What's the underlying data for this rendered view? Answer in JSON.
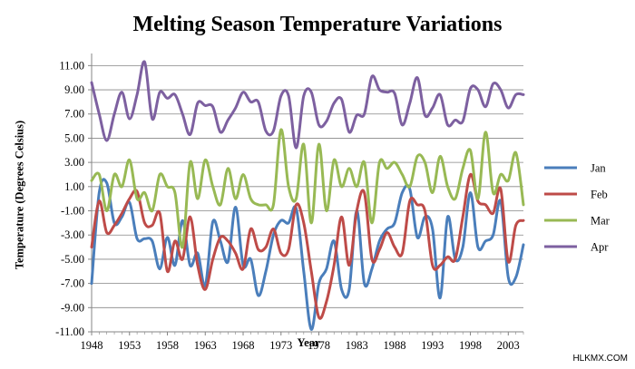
{
  "watermark": "HLKMX.COM",
  "chart_data": {
    "type": "line",
    "title": "Melting Season Temperature Variations",
    "xlabel": "Year",
    "ylabel": "Temperature (Degrees Celsius)",
    "xlim": [
      1948,
      2005
    ],
    "ylim": [
      -11,
      12
    ],
    "x_ticks": [
      1948,
      1953,
      1958,
      1963,
      1968,
      1973,
      1978,
      1983,
      1988,
      1993,
      1998,
      2003
    ],
    "y_ticks": [
      11,
      9,
      7,
      5,
      3,
      1,
      -1,
      -3,
      -5,
      -7,
      -9,
      -11
    ],
    "y_tick_labels": [
      "11.00",
      "9.00",
      "7.00",
      "5.00",
      "3.00",
      "1.00",
      "-1.00",
      "-3.00",
      "-5.00",
      "-7.00",
      "-9.00",
      "-11.00"
    ],
    "grid": "horizontal",
    "legend_position": "right",
    "x": [
      1948,
      1949,
      1950,
      1951,
      1952,
      1953,
      1954,
      1955,
      1956,
      1957,
      1958,
      1959,
      1960,
      1961,
      1962,
      1963,
      1964,
      1965,
      1966,
      1967,
      1968,
      1969,
      1970,
      1971,
      1972,
      1973,
      1974,
      1975,
      1976,
      1977,
      1978,
      1979,
      1980,
      1981,
      1982,
      1983,
      1984,
      1985,
      1986,
      1987,
      1988,
      1989,
      1990,
      1991,
      1992,
      1993,
      1994,
      1995,
      1996,
      1997,
      1998,
      1999,
      2000,
      2001,
      2002,
      2003,
      2004,
      2005
    ],
    "series": [
      {
        "name": "Jan",
        "color": "#4a7ebb",
        "values": [
          -7.0,
          0.5,
          1.3,
          -2.0,
          -1.5,
          -0.3,
          -3.3,
          -3.3,
          -3.5,
          -5.8,
          -3.2,
          -5.5,
          -1.8,
          -5.5,
          -4.5,
          -7.2,
          -1.9,
          -3.5,
          -5.2,
          -0.7,
          -5.5,
          -5.0,
          -8.0,
          -6.0,
          -3.0,
          -1.8,
          -2.0,
          -0.8,
          -6.0,
          -10.8,
          -7.0,
          -5.8,
          -3.5,
          -7.5,
          -7.5,
          -1.0,
          -7.0,
          -5.8,
          -3.5,
          -2.5,
          -2.0,
          0.5,
          0.8,
          -3.2,
          -1.5,
          -2.5,
          -8.2,
          -1.5,
          -5.0,
          -4.0,
          0.5,
          -4.0,
          -3.5,
          -3.0,
          -0.2,
          -6.5,
          -6.5,
          -3.8
        ]
      },
      {
        "name": "Feb",
        "color": "#be4b48",
        "values": [
          -4.0,
          -0.2,
          -2.8,
          -2.2,
          -1.2,
          0.0,
          0.6,
          -2.0,
          -2.2,
          -1.2,
          -6.0,
          -3.5,
          -5.0,
          -1.5,
          -5.5,
          -7.5,
          -5.0,
          -3.2,
          -3.5,
          -4.5,
          -5.8,
          -2.5,
          -4.2,
          -4.0,
          -2.5,
          -4.5,
          -4.2,
          -0.5,
          -2.0,
          -6.0,
          -9.8,
          -8.5,
          -5.5,
          -1.5,
          -5.5,
          -1.0,
          0.5,
          -5.0,
          -4.2,
          -2.8,
          -4.0,
          -4.5,
          -0.2,
          -0.5,
          -1.0,
          -5.5,
          -5.5,
          -4.8,
          -5.0,
          -1.5,
          2.0,
          -0.2,
          -0.5,
          -1.2,
          0.8,
          -5.2,
          -2.2,
          -1.8
        ]
      },
      {
        "name": "Mar",
        "color": "#98b954",
        "values": [
          1.5,
          2.0,
          -1.0,
          2.0,
          1.0,
          3.2,
          0.0,
          0.5,
          -1.0,
          2.0,
          1.0,
          0.5,
          -4.0,
          3.0,
          0.0,
          3.2,
          1.0,
          -0.5,
          2.5,
          0.0,
          2.0,
          0.0,
          -0.5,
          -0.5,
          -0.5,
          5.7,
          1.0,
          0.0,
          4.5,
          -2.0,
          4.5,
          -1.0,
          3.2,
          1.0,
          2.5,
          1.0,
          3.0,
          -2.0,
          3.0,
          2.5,
          3.0,
          2.0,
          1.0,
          3.5,
          3.0,
          0.5,
          3.5,
          1.0,
          0.0,
          2.5,
          4.0,
          0.0,
          5.5,
          0.5,
          2.0,
          1.5,
          3.8,
          -0.5
        ]
      },
      {
        "name": "Apr",
        "color": "#7d60a0",
        "values": [
          9.6,
          7.0,
          4.8,
          7.0,
          8.8,
          6.6,
          8.6,
          11.3,
          6.6,
          8.8,
          8.3,
          8.6,
          7.0,
          5.3,
          7.9,
          7.7,
          7.6,
          5.5,
          6.5,
          7.5,
          8.8,
          8.0,
          8.0,
          5.6,
          5.6,
          8.5,
          8.5,
          4.2,
          8.5,
          8.8,
          6.1,
          6.4,
          7.9,
          8.2,
          5.5,
          6.9,
          7.0,
          10.1,
          9.0,
          8.8,
          8.7,
          6.1,
          7.9,
          10.0,
          6.9,
          7.5,
          8.6,
          6.1,
          6.5,
          6.4,
          9.1,
          9.0,
          7.6,
          9.5,
          9.0,
          7.5,
          8.6,
          8.6
        ]
      }
    ]
  }
}
